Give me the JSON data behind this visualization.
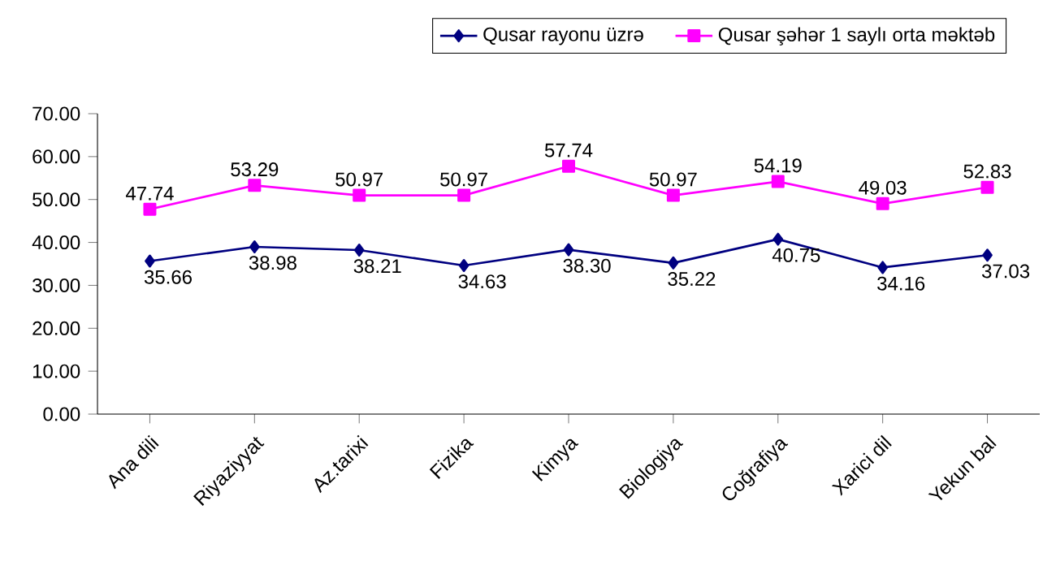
{
  "chart_data": {
    "type": "line",
    "categories": [
      "Ana dili",
      "Riyaziyyat",
      "Az.tarixi",
      "Fizika",
      "Kimya",
      "Biologiya",
      "Coğrafiya",
      "Xarici dil",
      "Yekun bal"
    ],
    "series": [
      {
        "name": "Qusar rayonu üzrə",
        "color": "#000080",
        "marker": "diamond",
        "values": [
          35.66,
          38.98,
          38.21,
          34.63,
          38.3,
          35.22,
          40.75,
          34.16,
          37.03
        ],
        "value_labels": [
          "35.66",
          "38.98",
          "38.21",
          "34.63",
          "38.30",
          "35.22",
          "40.75",
          "34.16",
          "37.03"
        ]
      },
      {
        "name": "Qusar şəhər 1 saylı orta məktəb",
        "color": "#ff00ff",
        "marker": "square",
        "values": [
          47.74,
          53.29,
          50.97,
          50.97,
          57.74,
          50.97,
          54.19,
          49.03,
          52.83
        ],
        "value_labels": [
          "47.74",
          "53.29",
          "50.97",
          "50.97",
          "57.74",
          "50.97",
          "54.19",
          "49.03",
          "52.83"
        ]
      }
    ],
    "ylim": [
      0,
      70
    ],
    "yticks": [
      {
        "value": 0,
        "label": "0.00"
      },
      {
        "value": 10,
        "label": "10.00"
      },
      {
        "value": 20,
        "label": "20.00"
      },
      {
        "value": 30,
        "label": "30.00"
      },
      {
        "value": 40,
        "label": "40.00"
      },
      {
        "value": 50,
        "label": "50.00"
      },
      {
        "value": 60,
        "label": "60.00"
      },
      {
        "value": 70,
        "label": "70.00"
      }
    ],
    "legend": "top"
  }
}
